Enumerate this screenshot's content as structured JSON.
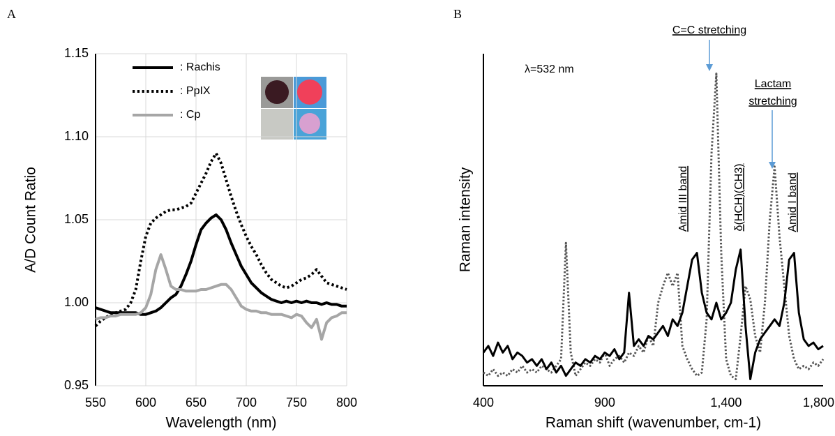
{
  "chart_data": [
    {
      "type": "line",
      "panel_label": "A",
      "xlabel": "Wavelength (nm)",
      "ylabel": "A/D Count  Ratio",
      "xlim": [
        550,
        800
      ],
      "xticks": [
        550,
        600,
        650,
        700,
        750,
        800
      ],
      "ylim": [
        0.95,
        1.15
      ],
      "yticks": [
        0.95,
        {
          "value": 1,
          "label": "1.00"
        },
        1.05,
        {
          "value": 1.1,
          "label": "1.10"
        },
        1.15
      ],
      "grid": true,
      "legend": "upper left",
      "x": [
        550,
        555,
        560,
        565,
        570,
        575,
        580,
        585,
        590,
        595,
        600,
        605,
        610,
        615,
        620,
        625,
        630,
        635,
        640,
        645,
        650,
        655,
        660,
        665,
        670,
        675,
        680,
        685,
        690,
        695,
        700,
        705,
        710,
        715,
        720,
        725,
        730,
        735,
        740,
        745,
        750,
        755,
        760,
        765,
        770,
        775,
        780,
        785,
        790,
        795,
        800
      ],
      "series": [
        {
          "name": ": Rachis",
          "color": "#000000",
          "dash": "solid",
          "values": [
            0.997,
            0.996,
            0.995,
            0.994,
            0.994,
            0.994,
            0.994,
            0.994,
            0.994,
            0.993,
            0.993,
            0.994,
            0.995,
            0.997,
            1.0,
            1.003,
            1.005,
            1.01,
            1.017,
            1.025,
            1.035,
            1.044,
            1.048,
            1.051,
            1.053,
            1.05,
            1.044,
            1.036,
            1.029,
            1.022,
            1.017,
            1.012,
            1.009,
            1.006,
            1.004,
            1.002,
            1.001,
            1.0,
            1.001,
            1.0,
            1.001,
            1.0,
            1.001,
            1.0,
            1.0,
            0.999,
            1.0,
            0.999,
            0.999,
            0.998,
            0.998
          ]
        },
        {
          "name": ": PpIX",
          "color": "#000000",
          "dash": "dotted",
          "values": [
            0.986,
            0.989,
            0.991,
            0.993,
            0.994,
            0.995,
            0.996,
            1.0,
            1.008,
            1.025,
            1.04,
            1.048,
            1.051,
            1.053,
            1.055,
            1.056,
            1.056,
            1.057,
            1.058,
            1.06,
            1.066,
            1.072,
            1.078,
            1.085,
            1.09,
            1.084,
            1.074,
            1.064,
            1.055,
            1.047,
            1.04,
            1.034,
            1.029,
            1.023,
            1.018,
            1.014,
            1.012,
            1.01,
            1.009,
            1.01,
            1.012,
            1.014,
            1.015,
            1.017,
            1.02,
            1.016,
            1.012,
            1.011,
            1.01,
            1.009,
            1.008
          ]
        },
        {
          "name": ": Cp",
          "color": "#a6a6a6",
          "dash": "solid",
          "values": [
            0.99,
            0.991,
            0.991,
            0.992,
            0.992,
            0.993,
            0.993,
            0.993,
            0.993,
            0.994,
            0.997,
            1.005,
            1.02,
            1.029,
            1.02,
            1.01,
            1.008,
            1.008,
            1.007,
            1.007,
            1.007,
            1.008,
            1.008,
            1.009,
            1.01,
            1.011,
            1.011,
            1.008,
            1.003,
            0.998,
            0.996,
            0.995,
            0.995,
            0.994,
            0.994,
            0.993,
            0.993,
            0.993,
            0.992,
            0.991,
            0.993,
            0.992,
            0.988,
            0.985,
            0.99,
            0.978,
            0.988,
            0.991,
            0.992,
            0.994,
            0.994
          ]
        }
      ]
    },
    {
      "type": "line",
      "panel_label": "B",
      "xlabel": "Raman shift (wavenumber, cm-1)",
      "ylabel": "Raman intensity",
      "xlim": [
        400,
        1800
      ],
      "xticks": [
        400,
        900,
        {
          "value": 1400,
          "label": "1,400"
        },
        {
          "value": 1800,
          "label": "1,800"
        }
      ],
      "ylim": [
        0,
        100
      ],
      "grid": false,
      "annotations": [
        "λ=532 nm",
        "C=C stretching",
        "Lactam",
        "stretching",
        "Amid III band",
        "δ(HCH)(CH3)",
        "Amid I band"
      ],
      "x": [
        400,
        420,
        440,
        460,
        480,
        500,
        520,
        540,
        560,
        580,
        600,
        620,
        640,
        660,
        680,
        700,
        720,
        740,
        760,
        780,
        800,
        820,
        840,
        860,
        880,
        900,
        920,
        940,
        960,
        980,
        1000,
        1020,
        1040,
        1060,
        1080,
        1100,
        1120,
        1140,
        1160,
        1180,
        1200,
        1220,
        1240,
        1260,
        1280,
        1300,
        1320,
        1340,
        1360,
        1380,
        1400,
        1420,
        1440,
        1460,
        1480,
        1500,
        1520,
        1540,
        1560,
        1580,
        1600,
        1620,
        1640,
        1660,
        1680,
        1700,
        1720,
        1740,
        1760,
        1780,
        1800
      ],
      "series": [
        {
          "color": "#555555",
          "dash": "dotted",
          "values": [
            4,
            3,
            5,
            3,
            4,
            3,
            5,
            4,
            6,
            4,
            5,
            4,
            6,
            5,
            4,
            6,
            8,
            43,
            10,
            3,
            5,
            7,
            6,
            8,
            7,
            10,
            6,
            8,
            9,
            7,
            10,
            9,
            12,
            10,
            15,
            12,
            25,
            30,
            34,
            30,
            34,
            12,
            8,
            5,
            3,
            4,
            20,
            70,
            94,
            40,
            8,
            3,
            2,
            15,
            30,
            26,
            15,
            10,
            25,
            50,
            66,
            45,
            30,
            15,
            8,
            5,
            6,
            5,
            7,
            6,
            8
          ]
        },
        {
          "color": "#000000",
          "dash": "solid",
          "values": [
            10,
            12,
            9,
            13,
            10,
            12,
            8,
            10,
            9,
            7,
            8,
            6,
            8,
            5,
            7,
            4,
            6,
            3,
            5,
            7,
            6,
            8,
            7,
            9,
            8,
            10,
            9,
            11,
            8,
            10,
            28,
            12,
            14,
            12,
            15,
            14,
            16,
            18,
            15,
            20,
            18,
            22,
            30,
            38,
            40,
            28,
            22,
            20,
            25,
            20,
            22,
            25,
            35,
            41,
            18,
            2,
            10,
            14,
            16,
            18,
            20,
            18,
            25,
            38,
            40,
            22,
            14,
            12,
            13,
            11,
            12
          ]
        }
      ]
    }
  ]
}
